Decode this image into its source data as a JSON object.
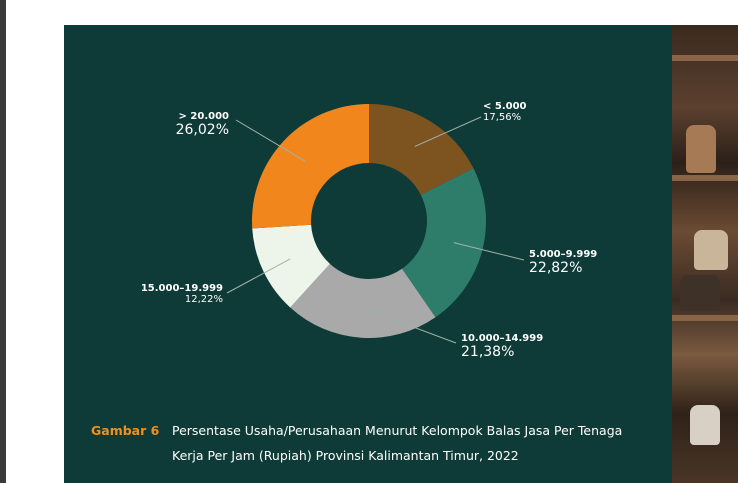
{
  "caption": {
    "figure_number": "Gambar 6",
    "line1": "Persentase Usaha/Perusahaan Menurut Kelompok Balas Jasa Per Tenaga",
    "line2": "Kerja Per Jam (Rupiah) Provinsi Kalimantan Timur, 2022"
  },
  "colors": {
    "panel_bg": "#0e3b37",
    "accent": "#f0901e"
  },
  "chart_data": {
    "type": "pie",
    "donut": true,
    "title": "",
    "slices": [
      {
        "label": "< 5.000",
        "value": 17.56,
        "display": "17,56%",
        "color": "#7d5420"
      },
      {
        "label": "5.000–9.999",
        "value": 22.82,
        "display": "22,82%",
        "color": "#2e7d6b"
      },
      {
        "label": "10.000–14.999",
        "value": 21.38,
        "display": "21,38%",
        "color": "#a9a9a9"
      },
      {
        "label": "15.000–19.999",
        "value": 12.22,
        "display": "12,22%",
        "color": "#edf4ea"
      },
      {
        "label": "> 20.000",
        "value": 26.02,
        "display": "26,02%",
        "color": "#f0861c"
      }
    ]
  }
}
